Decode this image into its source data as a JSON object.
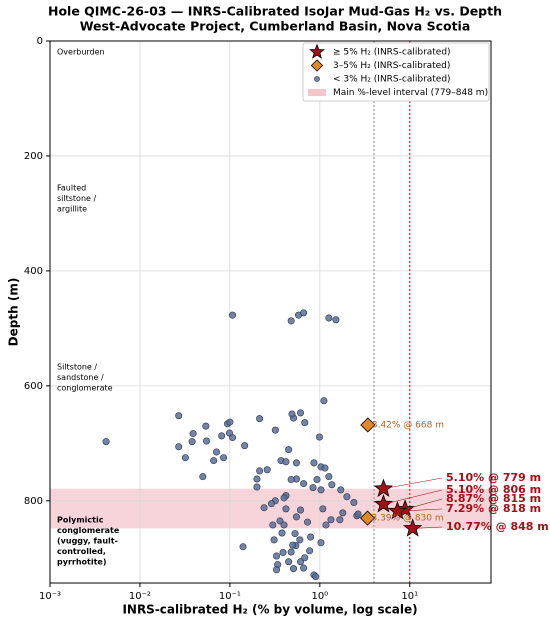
{
  "chart_data": {
    "type": "scatter",
    "title": "Hole QIMC-26-03 — INRS-Calibrated IsoJar Mud-Gas H₂ vs. Depth",
    "subtitle": "West-Advocate Project, Cumberland Basin, Nova Scotia",
    "x_label": "INRS-calibrated H₂ (% by volume, log scale)",
    "y_label": "Depth (m)",
    "x_log": true,
    "y_inverted": true,
    "grid": true,
    "legend": "upper right",
    "xlim": [
      0.001,
      80
    ],
    "ylim": [
      0,
      943
    ],
    "xticks": [
      {
        "value": 0.001,
        "label": "10⁻³"
      },
      {
        "value": 0.01,
        "label": "10⁻²"
      },
      {
        "value": 0.1,
        "label": "10⁻¹"
      },
      {
        "value": 1,
        "label": "10⁰"
      },
      {
        "value": 10,
        "label": "10¹"
      }
    ],
    "yticks": [
      0,
      200,
      400,
      600,
      800
    ],
    "band": {
      "name": "Main %-level interval (779–848 m)",
      "range": [
        779,
        848
      ],
      "color": "#f4c6cc"
    },
    "reference_lines": [
      {
        "value": 4,
        "color": "#9a9a9a"
      },
      {
        "value": 10,
        "color": "#c0392b"
      }
    ],
    "annotations": [
      {
        "lines": [
          "Overburden"
        ],
        "color": "#666666"
      },
      {
        "lines": [
          "Faulted",
          "siltstone /",
          "argillite"
        ],
        "color": "#666666"
      },
      {
        "lines": [
          "Siltstone /",
          "sandstone /",
          "conglomerate"
        ],
        "color": "#666666"
      },
      {
        "lines": [
          "Polymictic",
          "conglomerate",
          "(vuggy, fault-",
          "controlled,",
          "pyrrhotite)"
        ],
        "color": "#b00010"
      }
    ],
    "series": [
      {
        "name": "≥ 5% H₂ (INRS-calibrated)",
        "marker": "star",
        "color": "#a50f15",
        "x": [
          5.1,
          5.1,
          8.87,
          7.29,
          10.77
        ],
        "y": [
          779,
          806,
          815,
          818,
          848
        ],
        "value_labels": [
          "5.10% @ 779 m",
          "5.10% @ 806 m",
          "8.87% @ 815 m",
          "7.29% @ 818 m",
          "10.77% @ 848 m"
        ]
      },
      {
        "name": "3–5% H₂ (INRS-calibrated)",
        "marker": "diamond",
        "color": "#e0892b",
        "x": [
          3.42,
          3.39
        ],
        "y": [
          668,
          830
        ],
        "value_labels": [
          "3.42% @ 668 m",
          "3.39% @ 830 m"
        ]
      },
      {
        "name": "< 3% H₂ (INRS-calibrated)",
        "marker": "dot",
        "color": "#5b6e96",
        "x": [
          0.0042,
          0.027,
          0.039,
          0.054,
          0.055,
          0.038,
          0.081,
          0.099,
          0.094,
          0.1,
          0.071,
          0.066,
          0.085,
          0.107,
          0.027,
          0.032,
          0.05,
          0.146,
          0.214,
          0.32,
          0.214,
          0.2,
          0.2,
          0.26,
          0.45,
          0.51,
          0.49,
          0.61,
          0.68,
          0.37,
          0.42,
          0.55,
          0.86,
          1.03,
          1.14,
          0.99,
          0.55,
          0.66,
          0.84,
          0.93,
          1.03,
          1.26,
          1.36,
          0.48,
          0.42,
          0.4,
          0.32,
          0.61,
          1.08,
          1.71,
          2.0,
          2.39,
          2.58,
          1.67,
          1.33,
          1.17,
          0.73,
          0.55,
          0.42,
          0.36,
          0.3,
          0.38,
          0.53,
          0.6,
          0.79,
          1.03,
          0.54,
          0.48,
          0.39,
          0.33,
          0.34,
          0.33,
          0.45,
          0.51,
          0.61,
          0.68,
          0.77,
          0.86,
          0.9,
          0.66,
          0.14,
          0.107,
          0.48,
          0.58,
          0.66,
          1.26,
          1.51,
          1.11,
          1.8,
          2.66,
          0.29,
          0.24,
          0.4,
          0.5,
          0.31
        ],
        "y": [
          697,
          652,
          683,
          670,
          696,
          697,
          687,
          682,
          666,
          663,
          715,
          730,
          725,
          690,
          706,
          725,
          758,
          704,
          657,
          677,
          748,
          762,
          776,
          746,
          711,
          656,
          649,
          647,
          664,
          730,
          732,
          734,
          734,
          741,
          743,
          689,
          762,
          770,
          777,
          763,
          781,
          758,
          772,
          763,
          791,
          795,
          800,
          816,
          814,
          781,
          793,
          803,
          826,
          833,
          833,
          842,
          837,
          828,
          814,
          835,
          842,
          856,
          857,
          868,
          863,
          873,
          878,
          889,
          890,
          896,
          911,
          920,
          906,
          918,
          906,
          899,
          887,
          929,
          932,
          917,
          880,
          477,
          487,
          477,
          473,
          482,
          485,
          626,
          821,
          823,
          805,
          812,
          842,
          877,
          868
        ]
      }
    ]
  }
}
